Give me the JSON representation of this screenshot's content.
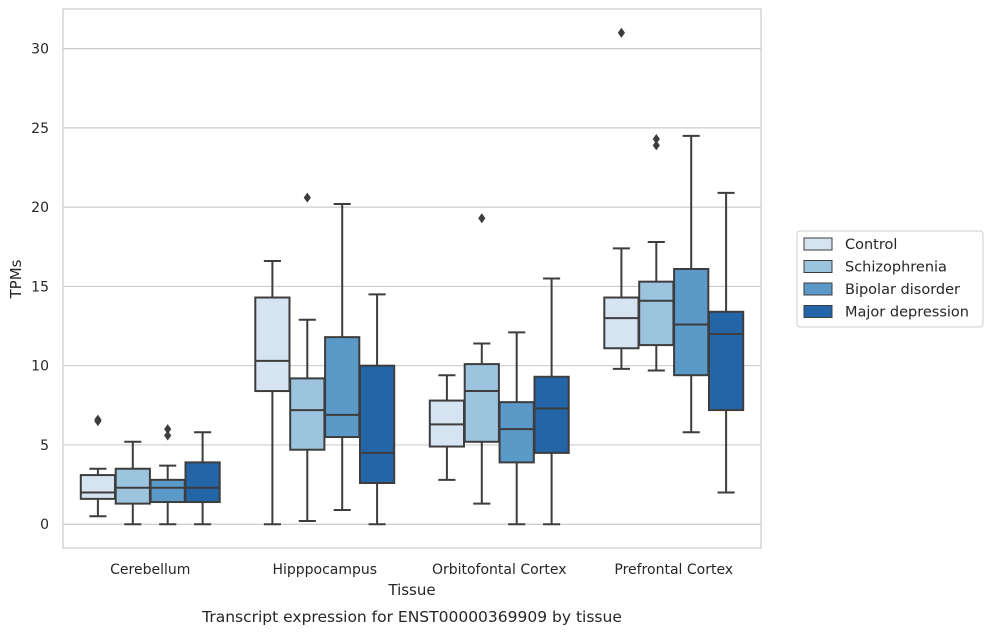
{
  "caption": "Transcript expression for ENST00000369909 by tissue",
  "chart_data": {
    "type": "boxplot",
    "xlabel": "Tissue",
    "ylabel": "TPMs",
    "ylim": [
      -1.5,
      32.5
    ],
    "yticks": [
      0,
      5,
      10,
      15,
      20,
      25,
      30
    ],
    "grid": "horizontal",
    "legend_position": "right",
    "categories": [
      "Cerebellum",
      "Hipppocampus",
      "Orbitofontal Cortex",
      "Prefrontal Cortex"
    ],
    "series": [
      {
        "name": "Control",
        "color": "#d6e4f2",
        "boxes": [
          {
            "whislo": 0.5,
            "q1": 1.6,
            "med": 2.0,
            "q3": 3.1,
            "whishi": 3.5,
            "fliers": [
              6.5,
              6.6
            ]
          },
          {
            "whislo": 0.0,
            "q1": 8.4,
            "med": 10.3,
            "q3": 14.3,
            "whishi": 16.6,
            "fliers": []
          },
          {
            "whislo": 2.8,
            "q1": 4.9,
            "med": 6.3,
            "q3": 7.8,
            "whishi": 9.4,
            "fliers": []
          },
          {
            "whislo": 9.8,
            "q1": 11.1,
            "med": 13.0,
            "q3": 14.3,
            "whishi": 17.4,
            "fliers": [
              31.0
            ]
          }
        ]
      },
      {
        "name": "Schizophrenia",
        "color": "#9dc4de",
        "boxes": [
          {
            "whislo": 0.0,
            "q1": 1.3,
            "med": 2.3,
            "q3": 3.5,
            "whishi": 5.2,
            "fliers": []
          },
          {
            "whislo": 0.2,
            "q1": 4.7,
            "med": 7.2,
            "q3": 9.2,
            "whishi": 12.9,
            "fliers": [
              20.6
            ]
          },
          {
            "whislo": 1.3,
            "q1": 5.2,
            "med": 8.4,
            "q3": 10.1,
            "whishi": 11.4,
            "fliers": [
              19.3
            ]
          },
          {
            "whislo": 9.7,
            "q1": 11.3,
            "med": 14.1,
            "q3": 15.3,
            "whishi": 17.8,
            "fliers": [
              23.9,
              24.3
            ]
          }
        ]
      },
      {
        "name": "Bipolar disorder",
        "color": "#5a99c8",
        "boxes": [
          {
            "whislo": 0.0,
            "q1": 1.4,
            "med": 2.3,
            "q3": 2.8,
            "whishi": 3.7,
            "fliers": [
              5.6,
              6.0
            ]
          },
          {
            "whislo": 0.9,
            "q1": 5.5,
            "med": 6.9,
            "q3": 11.8,
            "whishi": 20.2,
            "fliers": []
          },
          {
            "whislo": 0.0,
            "q1": 3.9,
            "med": 6.0,
            "q3": 7.7,
            "whishi": 12.1,
            "fliers": []
          },
          {
            "whislo": 5.8,
            "q1": 9.4,
            "med": 12.6,
            "q3": 16.1,
            "whishi": 24.5,
            "fliers": []
          }
        ]
      },
      {
        "name": "Major depression",
        "color": "#2465a8",
        "boxes": [
          {
            "whislo": 0.0,
            "q1": 1.4,
            "med": 2.3,
            "q3": 3.9,
            "whishi": 5.8,
            "fliers": []
          },
          {
            "whislo": 0.0,
            "q1": 2.6,
            "med": 4.5,
            "q3": 10.0,
            "whishi": 14.5,
            "fliers": []
          },
          {
            "whislo": 0.0,
            "q1": 4.5,
            "med": 7.3,
            "q3": 9.3,
            "whishi": 15.5,
            "fliers": []
          },
          {
            "whislo": 2.0,
            "q1": 7.2,
            "med": 12.0,
            "q3": 13.4,
            "whishi": 20.9,
            "fliers": []
          }
        ]
      }
    ]
  }
}
